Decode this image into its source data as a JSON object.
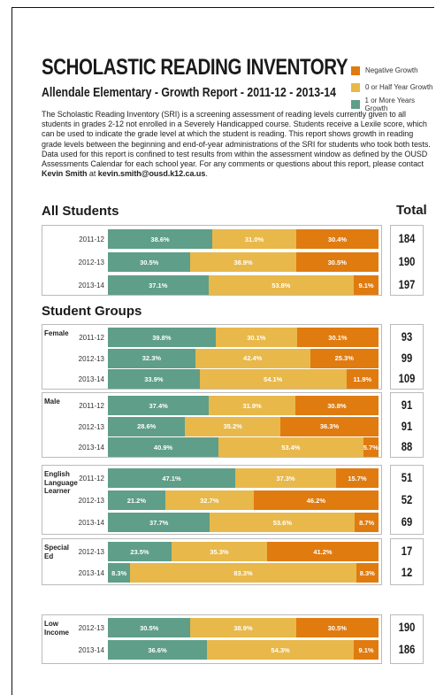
{
  "header": {
    "title": "SCHOLASTIC READING INVENTORY",
    "subtitle": "Allendale Elementary - Growth Report - 2011-12 - 2013-14"
  },
  "description": {
    "text": "The Scholastic Reading Inventory (SRI) is a screening assessment of reading levels currently given to all students in grades 2-12 not enrolled in a Severely Handicapped course. Students receive a Lexile score, which can be used to indicate the grade level at which the student is reading. This report shows growth in reading grade levels between the beginning and end-of-year administrations of the SRI for students who took both tests. Data used for this report is confined to test results from within the assessment window as defined by the OUSD Assessments Calendar for each school year. For any comments or questions about this report, please contact",
    "contact_name": "Kevin Smith",
    "contact_at": "at",
    "email": "kevin.smith@ousd.k12.ca.us",
    "period": "."
  },
  "sections": {
    "all_students": "All Students",
    "total": "Total",
    "student_groups": "Student Groups"
  },
  "colors": {
    "negative": "#e07b10",
    "half": "#e8b84a",
    "full": "#5f9e89"
  },
  "chart_data": {
    "type": "bar",
    "orientation": "horizontal",
    "stacked": true,
    "normalized_percent": true,
    "legend": {
      "placement": "top-right",
      "entries": [
        {
          "name": "Negative Growth",
          "color": "#e07b10"
        },
        {
          "name": "0 or Half Year Growth",
          "color": "#e8b84a"
        },
        {
          "name": "1 or More Years Growth",
          "color": "#5f9e89"
        }
      ]
    },
    "series_order": [
      "1 or More Years Growth",
      "0 or Half Year Growth",
      "Negative Growth"
    ],
    "groups": [
      {
        "label": "",
        "rows": [
          {
            "year": "2011-12",
            "values": [
              38.6,
              31.0,
              30.4
            ],
            "labels": [
              "38.6%",
              "31.0%",
              "30.4%"
            ],
            "total": "184"
          },
          {
            "year": "2012-13",
            "values": [
              30.5,
              38.9,
              30.5
            ],
            "labels": [
              "30.5%",
              "38.9%",
              "30.5%"
            ],
            "total": "190"
          },
          {
            "year": "2013-14",
            "values": [
              37.1,
              53.8,
              9.1
            ],
            "labels": [
              "37.1%",
              "53.8%",
              "9.1%"
            ],
            "total": "197"
          }
        ]
      },
      {
        "label": "Female",
        "rows": [
          {
            "year": "2011-12",
            "values": [
              39.8,
              30.1,
              30.1
            ],
            "labels": [
              "39.8%",
              "30.1%",
              "30.1%"
            ],
            "total": "93"
          },
          {
            "year": "2012-13",
            "values": [
              32.3,
              42.4,
              25.3
            ],
            "labels": [
              "32.3%",
              "42.4%",
              "25.3%"
            ],
            "total": "99"
          },
          {
            "year": "2013-14",
            "values": [
              33.9,
              54.1,
              11.9
            ],
            "labels": [
              "33.9%",
              "54.1%",
              "11.9%"
            ],
            "total": "109"
          }
        ]
      },
      {
        "label": "Male",
        "rows": [
          {
            "year": "2011-12",
            "values": [
              37.4,
              31.9,
              30.8
            ],
            "labels": [
              "37.4%",
              "31.9%",
              "30.8%"
            ],
            "total": "91"
          },
          {
            "year": "2012-13",
            "values": [
              28.6,
              35.2,
              36.3
            ],
            "labels": [
              "28.6%",
              "35.2%",
              "36.3%"
            ],
            "total": "91"
          },
          {
            "year": "2013-14",
            "values": [
              40.9,
              53.4,
              5.7
            ],
            "labels": [
              "40.9%",
              "53.4%",
              "5.7%"
            ],
            "total": "88"
          }
        ]
      },
      {
        "label": "English Language Learner",
        "rows": [
          {
            "year": "2011-12",
            "values": [
              47.1,
              37.3,
              15.7
            ],
            "labels": [
              "47.1%",
              "37.3%",
              "15.7%"
            ],
            "total": "51"
          },
          {
            "year": "2012-13",
            "values": [
              21.2,
              32.7,
              46.2
            ],
            "labels": [
              "21.2%",
              "32.7%",
              "46.2%"
            ],
            "total": "52"
          },
          {
            "year": "2013-14",
            "values": [
              37.7,
              53.6,
              8.7
            ],
            "labels": [
              "37.7%",
              "53.6%",
              "8.7%"
            ],
            "total": "69"
          }
        ]
      },
      {
        "label": "Special Ed",
        "rows": [
          {
            "year": "2012-13",
            "values": [
              23.5,
              35.3,
              41.2
            ],
            "labels": [
              "23.5%",
              "35.3%",
              "41.2%"
            ],
            "total": "17"
          },
          {
            "year": "2013-14",
            "values": [
              8.3,
              83.3,
              8.3
            ],
            "labels": [
              "8.3%",
              "83.3%",
              "8.3%"
            ],
            "total": "12"
          }
        ]
      },
      {
        "label": "Low Income",
        "rows": [
          {
            "year": "2012-13",
            "values": [
              30.5,
              38.9,
              30.5
            ],
            "labels": [
              "30.5%",
              "38.9%",
              "30.5%"
            ],
            "total": "190"
          },
          {
            "year": "2013-14",
            "values": [
              36.6,
              54.3,
              9.1
            ],
            "labels": [
              "36.6%",
              "54.3%",
              "9.1%"
            ],
            "total": "186"
          }
        ]
      }
    ]
  }
}
